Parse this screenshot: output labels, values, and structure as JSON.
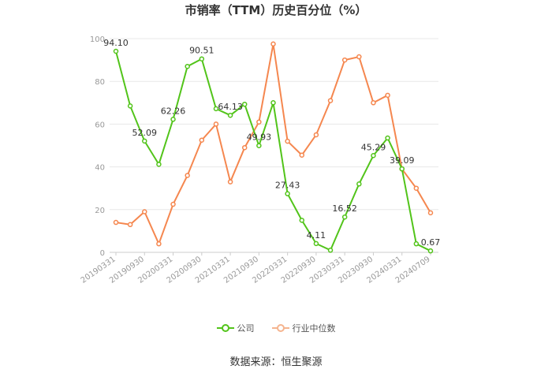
{
  "title": "市销率（TTM）历史百分位（%）",
  "source": "数据来源：恒生聚源",
  "legend": [
    {
      "name": "公司",
      "color": "#52c41a"
    },
    {
      "name": "行业中位数",
      "color": "#f5874f"
    }
  ],
  "chart_data": {
    "type": "line",
    "title": "市销率（TTM）历史百分位（%）",
    "ylim": [
      0,
      100
    ],
    "y_ticks": [
      0,
      20,
      40,
      60,
      80,
      100
    ],
    "x_tick_labels": [
      "20190331",
      "20190930",
      "20200331",
      "20200930",
      "20210331",
      "20210930",
      "20220331",
      "20220930",
      "20230331",
      "20230930",
      "20240331",
      "20240709"
    ],
    "grid": true,
    "legend_position": "bottom",
    "series": [
      {
        "name": "公司",
        "color": "#52c41a",
        "values": [
          94.1,
          68.5,
          52.09,
          41.2,
          62.26,
          87.0,
          90.51,
          67.2,
          64.13,
          69.3,
          49.93,
          70.0,
          27.43,
          15.0,
          4.11,
          1.0,
          16.52,
          32.0,
          45.29,
          53.5,
          39.09,
          4.0,
          0.67
        ],
        "labels": {
          "0": "94.10",
          "2": "52.09",
          "4": "62.26",
          "6": "90.51",
          "8": "64.13",
          "10": "49.93",
          "12": "27.43",
          "14": "4.11",
          "16": "16.52",
          "18": "45.29",
          "20": "39.09",
          "22": "0.67"
        }
      },
      {
        "name": "行业中位数",
        "color": "#f5874f",
        "values": [
          14.0,
          13.0,
          19.0,
          4.0,
          22.5,
          36.0,
          52.5,
          60.0,
          33.0,
          49.0,
          61.0,
          97.5,
          52.0,
          45.5,
          55.0,
          71.0,
          90.0,
          91.5,
          70.0,
          73.5,
          39.0,
          30.0,
          18.5
        ]
      }
    ]
  }
}
